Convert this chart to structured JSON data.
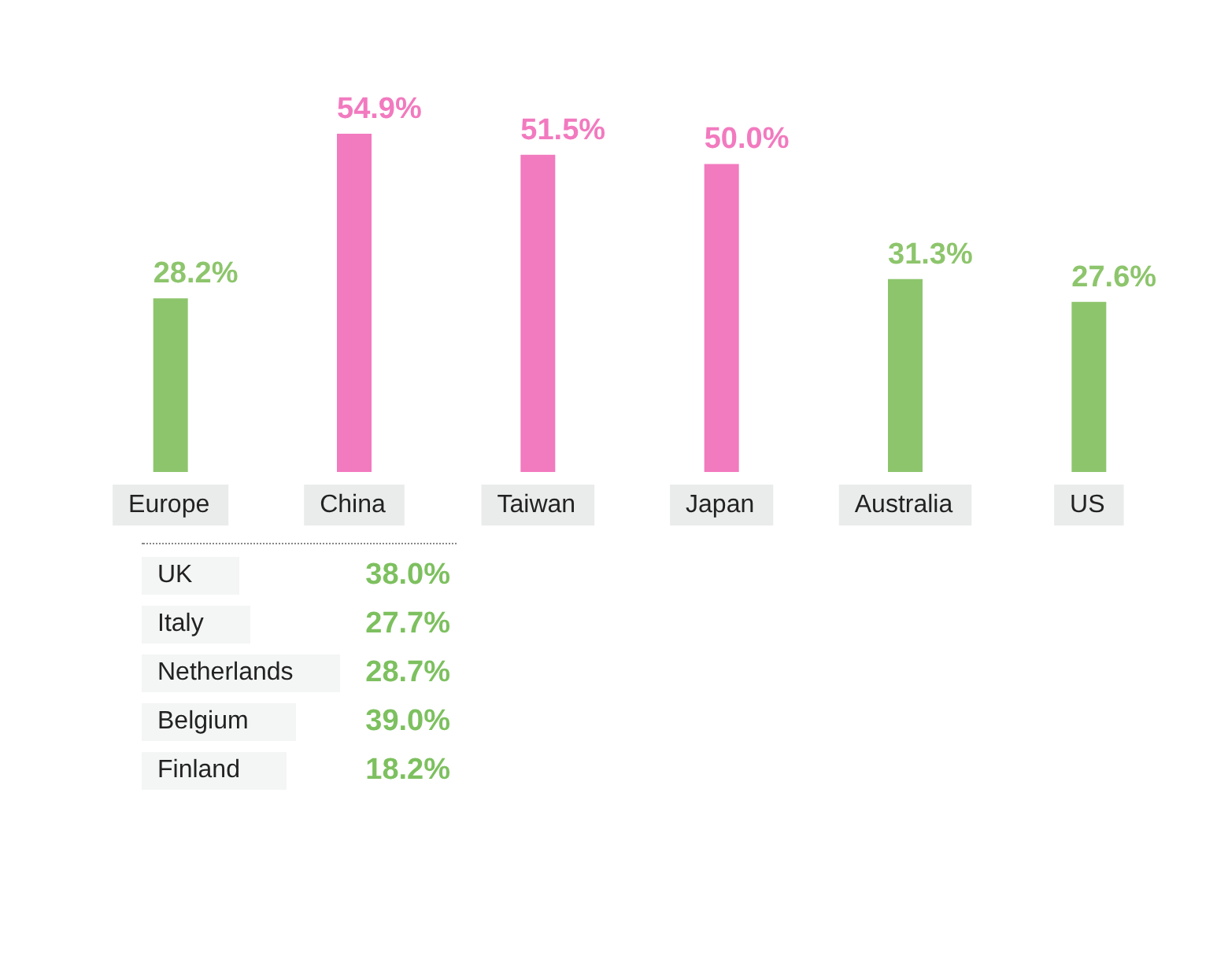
{
  "chart_data": [
    {
      "type": "bar",
      "categories": [
        "Europe",
        "China",
        "Taiwan",
        "Japan",
        "Australia",
        "US"
      ],
      "values": [
        28.2,
        54.9,
        51.5,
        50.0,
        31.3,
        27.6
      ],
      "colors": [
        "#8dc56c",
        "#f27abf",
        "#f27abf",
        "#f27abf",
        "#8dc56c",
        "#8dc56c"
      ],
      "value_labels": [
        "28.2%",
        "54.9%",
        "51.5%",
        "50.0%",
        "31.3%",
        "27.6%"
      ]
    },
    {
      "type": "other",
      "categories": [
        "UK",
        "Italy",
        "Netherlands",
        "Belgium",
        "Finland"
      ],
      "values": [
        38.0,
        27.7,
        28.7,
        39.0,
        18.2
      ],
      "value_labels": [
        "38.0%",
        "27.7%",
        "28.7%",
        "39.0%",
        "18.2%"
      ],
      "color": "#7dc05f"
    }
  ]
}
